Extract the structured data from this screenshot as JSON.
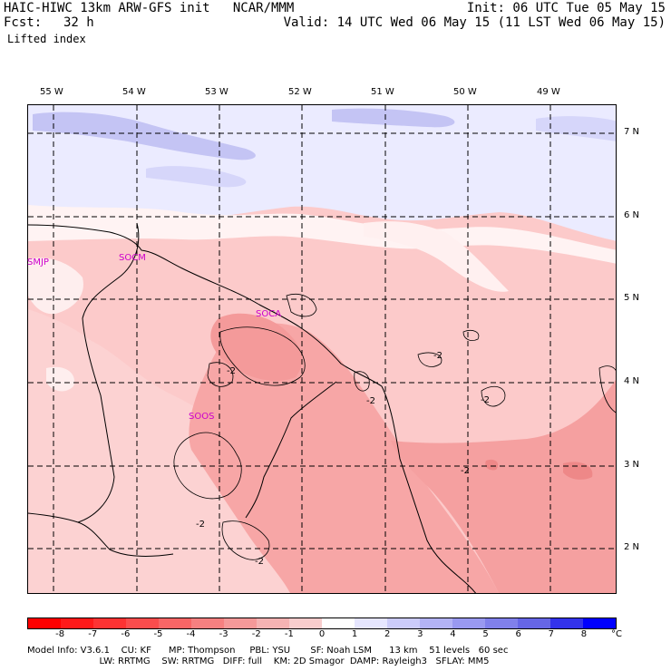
{
  "header": {
    "line1_left": "HAIC-HIWC 13km ARW-GFS init   NCAR/MMM",
    "line1_right": "Init: 06 UTC Tue 05 May 15",
    "fcst_label": "Fcst:",
    "fcst_value": "32 h",
    "line2_right": "Valid: 14 UTC Wed 06 May 15 (11 LST Wed 06 May 15)",
    "field_name": "Lifted index"
  },
  "map": {
    "lon_labels": [
      "55 W",
      "54 W",
      "53 W",
      "52 W",
      "51 W",
      "50 W",
      "49 W"
    ],
    "lat_labels": [
      "7 N",
      "6 N",
      "5 N",
      "4 N",
      "3 N",
      "2 N"
    ],
    "station_labels": [
      "SMJP",
      "SOCM",
      "SOCA",
      "SOOS"
    ],
    "contour_labels": [
      "-2",
      "-2",
      "-2",
      "-2",
      "-2",
      "-2",
      "-2"
    ],
    "colors": {
      "blue_light": "#e6e6ff",
      "blue_mid": "#b8b8f0",
      "white": "#ffffff",
      "pink_light": "#fde0e0",
      "pink_mid": "#fccaca",
      "pink_dark": "#f7a6a6",
      "pink_darker": "#f28f8f"
    }
  },
  "colorbar": {
    "tick_labels": [
      "-8",
      "-7",
      "-6",
      "-5",
      "-4",
      "-3",
      "-2",
      "-1",
      "0",
      "1",
      "2",
      "3",
      "4",
      "5",
      "6",
      "7",
      "8"
    ],
    "unit": "°C",
    "colors": [
      "#ff0000",
      "#fe1a1a",
      "#fc3333",
      "#fa4d4d",
      "#f86666",
      "#f68080",
      "#f59999",
      "#f5b3b3",
      "#f8cdcd",
      "#ffffff",
      "#e6e6ff",
      "#ccccfa",
      "#b3b3f5",
      "#9999f0",
      "#8080eb",
      "#6666e6",
      "#3333eb",
      "#0000ff"
    ]
  },
  "footer": {
    "line1": "Model Info: V3.6.1    CU: KF      MP: Thompson     PBL: YSU       SF: Noah LSM      13 km    51 levels   60 sec",
    "line2": "                         LW: RRTMG    SW: RRTMG   DIFF: full    KM: 2D Smagor  DAMP: Rayleigh3   SFLAY: MM5"
  }
}
